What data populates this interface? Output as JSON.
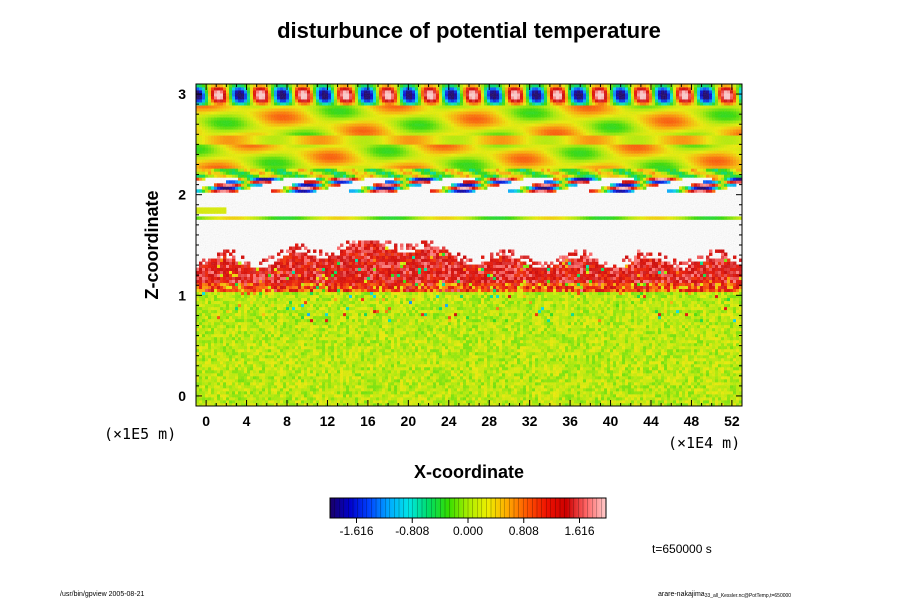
{
  "chart_data": {
    "type": "heatmap",
    "title": "disturbunce of potential temperature",
    "xlabel": "X-coordinate",
    "ylabel": "Z-coordinate",
    "x_unit": "(×1E4 m)",
    "y_unit": "(×1E5 m)",
    "x_range": [
      -1,
      53
    ],
    "y_range": [
      -0.1,
      3.1
    ],
    "x_ticks": [
      "0",
      "4",
      "8",
      "12",
      "16",
      "20",
      "24",
      "28",
      "32",
      "36",
      "40",
      "44",
      "48",
      "52"
    ],
    "y_ticks": [
      "0",
      "1",
      "2",
      "3"
    ],
    "colorbar": {
      "range": [
        -2.0,
        2.0
      ],
      "tick_labels": [
        "-1.616",
        "-0.808",
        "0.000",
        "0.808",
        "1.616"
      ],
      "tick_values": [
        -1.616,
        -0.808,
        0.0,
        0.808,
        1.616
      ],
      "colors": [
        "#1a0066",
        "#0000cc",
        "#0044ff",
        "#00aaff",
        "#00e6e6",
        "#00dd66",
        "#33dd00",
        "#aaee00",
        "#eeee00",
        "#ffaa00",
        "#ff5500",
        "#ee1100",
        "#cc0000",
        "#ff6666",
        "#ffcccc"
      ]
    },
    "regions": [
      {
        "z": [
          0.0,
          1.05
        ],
        "value": 0.0,
        "pattern": "near-zero noise"
      },
      {
        "z": [
          1.05,
          1.55
        ],
        "value": 1.2,
        "pattern": "positive turbulent layer"
      },
      {
        "z": [
          1.75,
          2.25
        ],
        "value": null,
        "pattern": "masked (blank)"
      },
      {
        "z": [
          2.25,
          3.1
        ],
        "value": 0.0,
        "pattern": "gravity-wave oscillations"
      }
    ],
    "time_label": "t=650000 s"
  },
  "footer": {
    "left": "/usr/bin/gpview 2005-08-21",
    "right_name": "arare-nakajima",
    "right_path": "33_all_Kessler.nc@PotTemp,t=650000"
  }
}
